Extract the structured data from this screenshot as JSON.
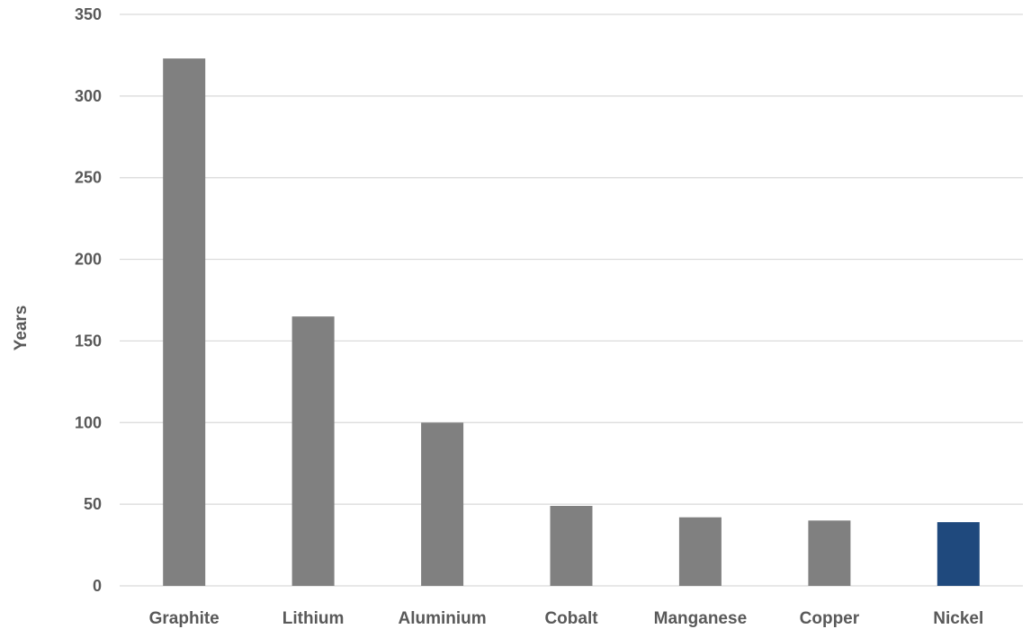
{
  "chart_data": {
    "type": "bar",
    "title": "",
    "xlabel": "",
    "ylabel": "Years",
    "ylim": [
      0,
      350
    ],
    "yticks": [
      0,
      50,
      100,
      150,
      200,
      250,
      300,
      350
    ],
    "grid": true,
    "legend": "none",
    "categories": [
      "Graphite",
      "Lithium",
      "Aluminium",
      "Cobalt",
      "Manganese",
      "Copper",
      "Nickel"
    ],
    "values": [
      323,
      165,
      100,
      49,
      42,
      40,
      39
    ],
    "bar_colors": [
      "#808080",
      "#808080",
      "#808080",
      "#808080",
      "#808080",
      "#808080",
      "#1f497d"
    ]
  }
}
